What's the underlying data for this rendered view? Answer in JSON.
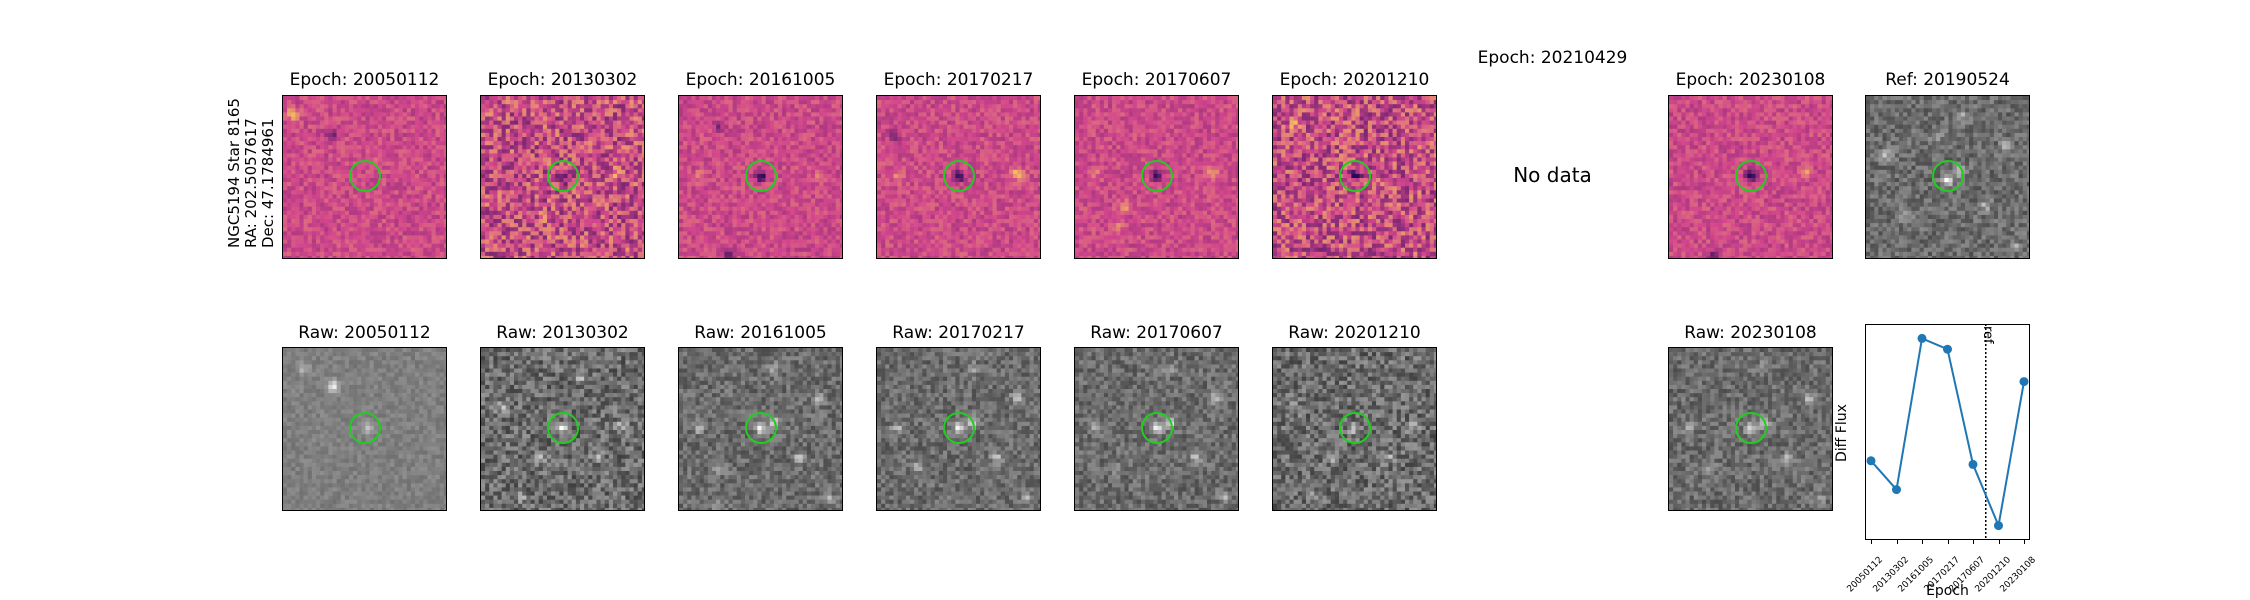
{
  "target": {
    "line1": "NGC5194 Star 8165",
    "line2": "RA: 202.5057617",
    "line3": "Dec: 47.1784961"
  },
  "diff_panels": [
    {
      "title": "Epoch: 20050112",
      "has_data": true
    },
    {
      "title": "Epoch: 20130302",
      "has_data": true
    },
    {
      "title": "Epoch: 20161005",
      "has_data": true
    },
    {
      "title": "Epoch: 20170217",
      "has_data": true
    },
    {
      "title": "Epoch: 20170607",
      "has_data": true
    },
    {
      "title": "Epoch: 20201210",
      "has_data": true
    },
    {
      "title": "Epoch: 20210429",
      "has_data": false,
      "nodata_text": "No data"
    },
    {
      "title": "Epoch: 20230108",
      "has_data": true
    }
  ],
  "ref_panel": {
    "title": "Ref: 20190524"
  },
  "raw_panels": [
    {
      "title": "Raw: 20050112"
    },
    {
      "title": "Raw: 20130302"
    },
    {
      "title": "Raw: 20161005"
    },
    {
      "title": "Raw: 20170217"
    },
    {
      "title": "Raw: 20170607"
    },
    {
      "title": "Raw: 20201210"
    },
    {
      "title": "Raw: 20230108"
    }
  ],
  "colors": {
    "marker_circle": "#22cc22",
    "line": "#1f77b4",
    "diff_base": "#c8508a",
    "raw_base": "#808080"
  },
  "chart_data": {
    "type": "line",
    "xlabel": "Epoch",
    "ylabel": "Diff Flux",
    "categories": [
      "20050112",
      "20130302",
      "20161005",
      "20170217",
      "20170607",
      "20201210",
      "20230108"
    ],
    "values": [
      0.38,
      0.3,
      0.72,
      0.69,
      0.37,
      0.2,
      0.6
    ],
    "ylim": [
      0.16,
      0.76
    ],
    "ref_line": {
      "label": "ref",
      "after_category_index": 4,
      "style": "dotted"
    },
    "grid": false
  }
}
